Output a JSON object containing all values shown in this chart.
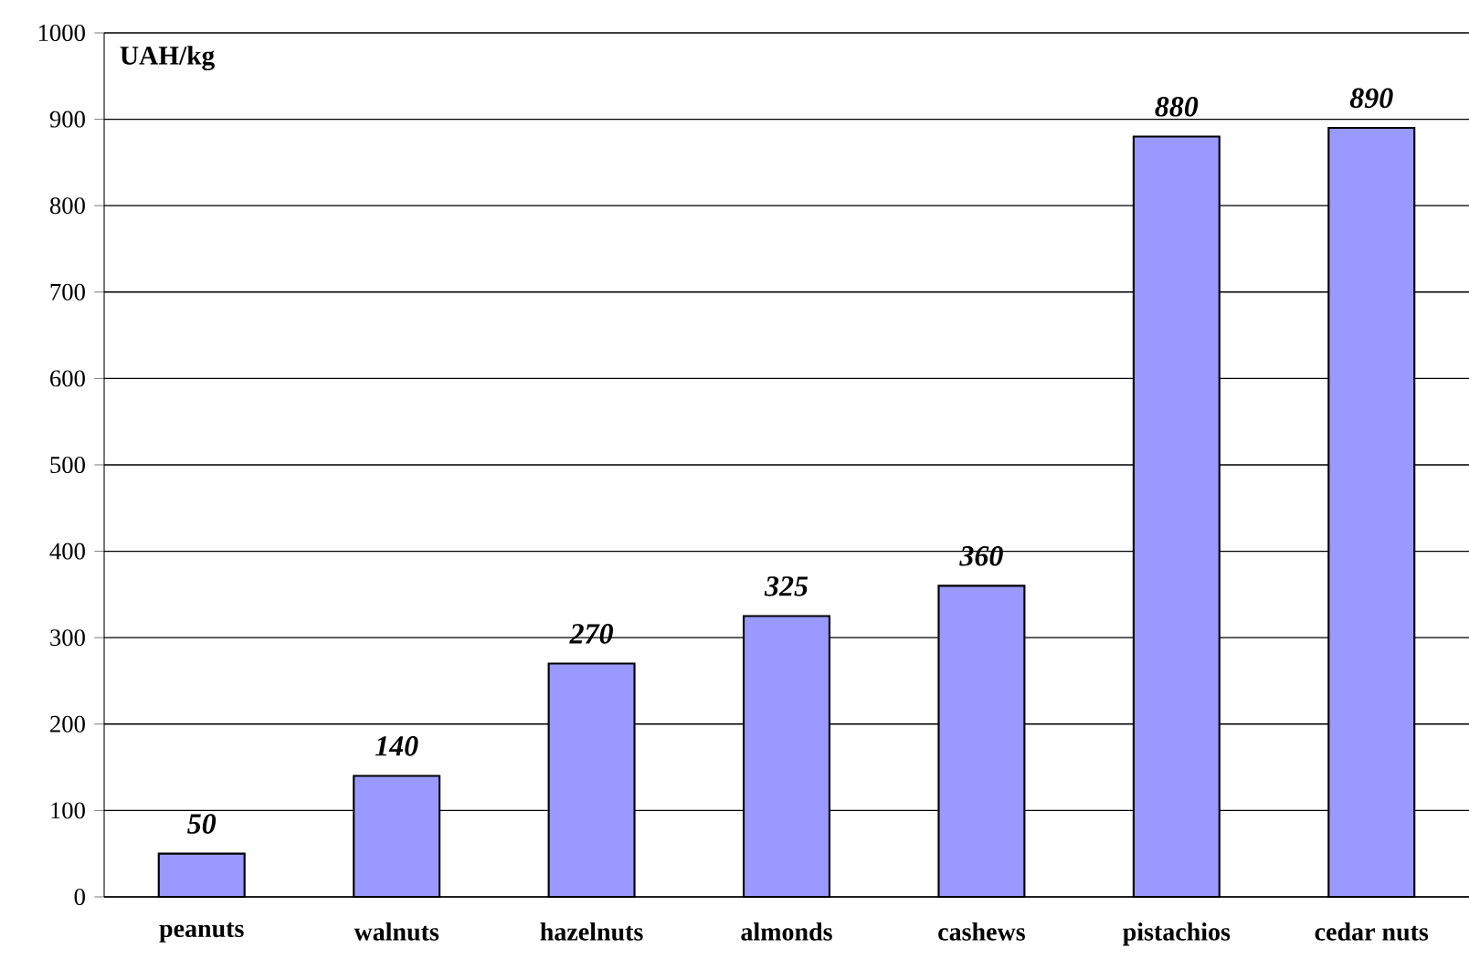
{
  "chart_data": {
    "type": "bar",
    "ylabel": "UAH/kg",
    "categories": [
      "peanuts",
      "walnuts",
      "hazelnuts",
      "almonds",
      "cashews",
      "pistachios",
      "cedar nuts"
    ],
    "values": [
      50,
      140,
      270,
      325,
      360,
      880,
      890
    ],
    "color": "#9999ff",
    "ylim": [
      0,
      1000
    ],
    "yticks": [
      0,
      100,
      200,
      300,
      400,
      500,
      600,
      700,
      800,
      900,
      1000
    ],
    "grid": "y",
    "data_labels": true
  }
}
